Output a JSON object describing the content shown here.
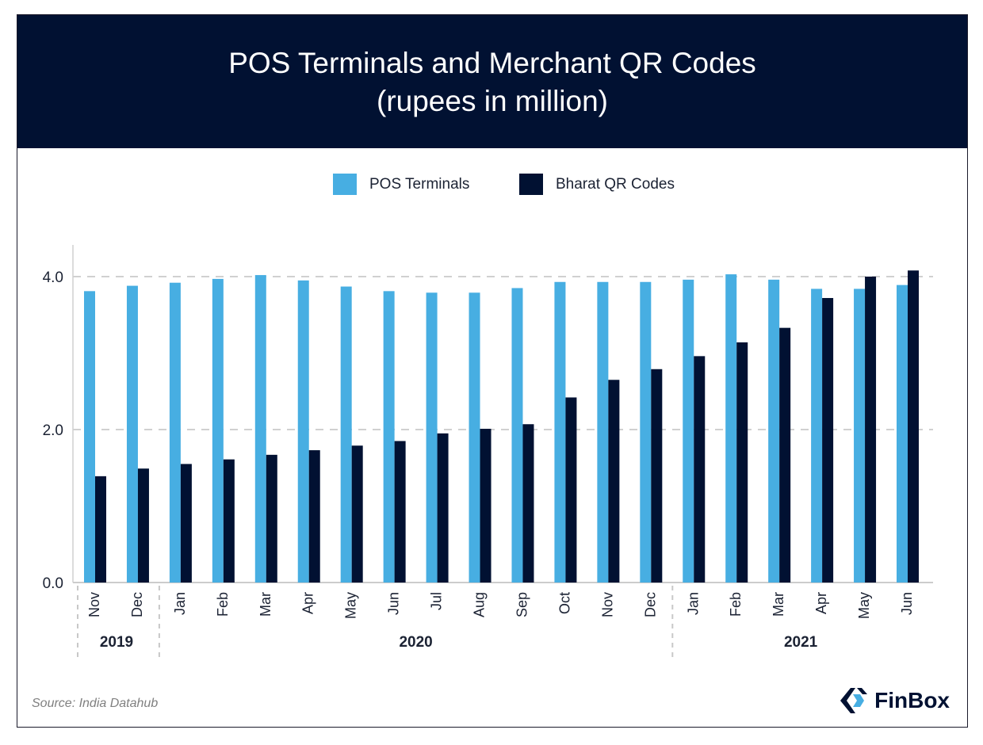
{
  "header": {
    "title": "POS Terminals and Merchant QR Codes",
    "subtitle": "(rupees in million)"
  },
  "legend": [
    {
      "label": "POS Terminals",
      "color": "#47aee2"
    },
    {
      "label": "Bharat QR Codes",
      "color": "#011132"
    }
  ],
  "footer": {
    "source": "Source: India Datahub",
    "brand": "FinBox",
    "brand_icon": "finbox-logo-icon"
  },
  "chart_data": {
    "type": "bar",
    "title": "POS Terminals and Merchant QR Codes",
    "subtitle": "(rupees in million)",
    "categories": [
      "Nov",
      "Dec",
      "Jan",
      "Feb",
      "Mar",
      "Apr",
      "May",
      "Jun",
      "Jul",
      "Aug",
      "Sep",
      "Oct",
      "Nov",
      "Dec",
      "Jan",
      "Feb",
      "Mar",
      "Apr",
      "May",
      "Jun"
    ],
    "groups": [
      {
        "label": "2019",
        "count": 2
      },
      {
        "label": "2020",
        "count": 12
      },
      {
        "label": "2021",
        "count": 6
      }
    ],
    "series": [
      {
        "name": "POS Terminals",
        "color": "#47aee2",
        "values": [
          3.81,
          3.88,
          3.92,
          3.97,
          4.02,
          3.95,
          3.87,
          3.81,
          3.79,
          3.79,
          3.85,
          3.93,
          3.93,
          3.93,
          3.96,
          4.03,
          3.96,
          3.84,
          3.84,
          3.89
        ]
      },
      {
        "name": "Bharat QR Codes",
        "color": "#011132",
        "values": [
          1.39,
          1.49,
          1.55,
          1.61,
          1.67,
          1.73,
          1.79,
          1.85,
          1.95,
          2.01,
          2.07,
          2.42,
          2.65,
          2.79,
          2.96,
          3.14,
          3.33,
          3.72,
          4.0,
          4.08
        ]
      }
    ],
    "yticks": [
      0.0,
      2.0,
      4.0
    ],
    "ytick_labels": [
      "0.0",
      "2.0",
      "4.0"
    ],
    "ylim": [
      0,
      4.2
    ],
    "grid": "horizontal dashed",
    "legend_position": "top-center"
  }
}
